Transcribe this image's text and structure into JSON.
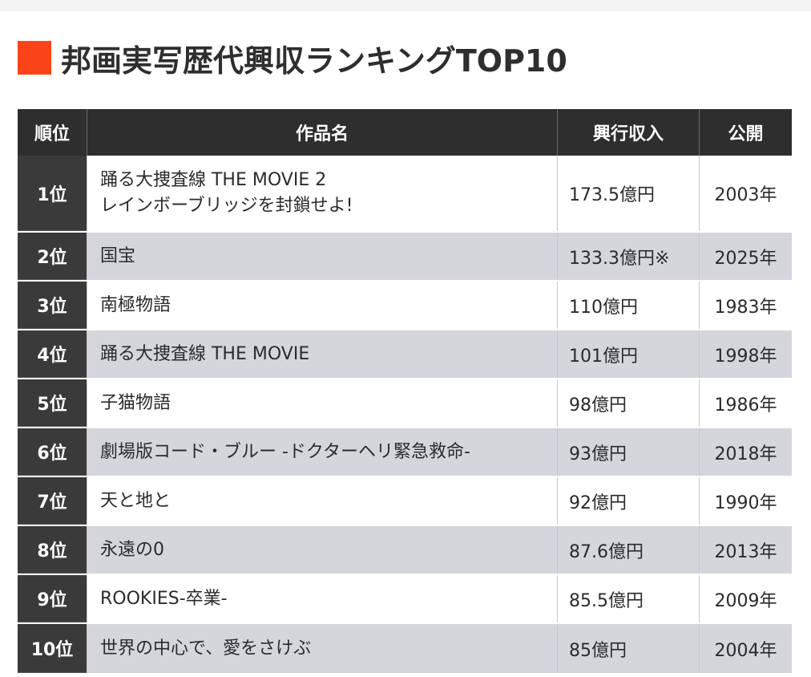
{
  "title": "邦画実写歴代興収ランキングTOP10",
  "colors": {
    "accent": "#fa4418",
    "header_bg": "#2e2e2e",
    "rank_bg": "#3a3a3a",
    "stripe_bg": "#d4d6dc"
  },
  "chart_data": {
    "type": "table",
    "title": "邦画実写歴代興収ランキングTOP10",
    "columns": [
      "順位",
      "作品名",
      "興行収入",
      "公開"
    ],
    "rows": [
      {
        "rank": "1位",
        "title_lines": [
          "踊る大捜査線 THE MOVIE 2",
          "レインボーブリッジを封鎖せよ!"
        ],
        "gross": "173.5億円",
        "gross_value": 173.5,
        "year": "2003年"
      },
      {
        "rank": "2位",
        "title_lines": [
          "国宝"
        ],
        "gross": "133.3億円※",
        "gross_value": 133.3,
        "year": "2025年"
      },
      {
        "rank": "3位",
        "title_lines": [
          "南極物語"
        ],
        "gross": "110億円",
        "gross_value": 110,
        "year": "1983年"
      },
      {
        "rank": "4位",
        "title_lines": [
          "踊る大捜査線 THE MOVIE"
        ],
        "gross": "101億円",
        "gross_value": 101,
        "year": "1998年"
      },
      {
        "rank": "5位",
        "title_lines": [
          "子猫物語"
        ],
        "gross": "98億円",
        "gross_value": 98,
        "year": "1986年"
      },
      {
        "rank": "6位",
        "title_lines": [
          "劇場版コード・ブルー -ドクターヘリ緊急救命-"
        ],
        "gross": "93億円",
        "gross_value": 93,
        "year": "2018年"
      },
      {
        "rank": "7位",
        "title_lines": [
          "天と地と"
        ],
        "gross": "92億円",
        "gross_value": 92,
        "year": "1990年"
      },
      {
        "rank": "8位",
        "title_lines": [
          "永遠の0"
        ],
        "gross": "87.6億円",
        "gross_value": 87.6,
        "year": "2013年"
      },
      {
        "rank": "9位",
        "title_lines": [
          "ROOKIES-卒業-"
        ],
        "gross": "85.5億円",
        "gross_value": 85.5,
        "year": "2009年"
      },
      {
        "rank": "10位",
        "title_lines": [
          "世界の中心で、愛をさけぶ"
        ],
        "gross": "85億円",
        "gross_value": 85,
        "year": "2004年"
      }
    ]
  }
}
